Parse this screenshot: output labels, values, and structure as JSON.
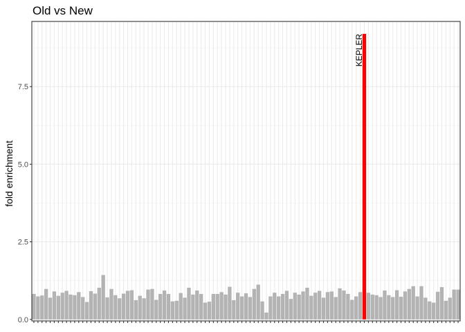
{
  "chart_data": {
    "type": "bar",
    "title": "Old vs New",
    "xlabel": "",
    "ylabel": "fold enrichment",
    "ylim": [
      -0.05,
      9.6
    ],
    "yticks": [
      0.0,
      2.5,
      5.0,
      7.5
    ],
    "ytick_labels": [
      "0.0",
      "2.5",
      "5.0",
      "7.5"
    ],
    "grid": true,
    "bar_color": "#b3b3b3",
    "highlight_color": "#ff0000",
    "highlight_index": 81,
    "annotation": {
      "text": "KEPLER",
      "category_index": 81
    },
    "values": [
      0.82,
      0.74,
      0.77,
      0.98,
      0.7,
      0.9,
      0.76,
      0.86,
      0.92,
      0.8,
      0.78,
      0.88,
      0.72,
      0.56,
      0.91,
      0.83,
      1.02,
      1.43,
      0.71,
      0.98,
      0.78,
      0.68,
      0.83,
      0.92,
      0.94,
      0.62,
      0.76,
      0.68,
      0.96,
      0.98,
      0.63,
      0.82,
      0.93,
      0.82,
      0.58,
      0.6,
      0.85,
      0.7,
      1.02,
      0.8,
      0.93,
      0.82,
      0.54,
      0.57,
      0.82,
      0.82,
      0.88,
      0.8,
      1.05,
      0.62,
      0.86,
      0.74,
      0.84,
      0.72,
      0.98,
      1.12,
      0.58,
      0.22,
      0.74,
      0.86,
      0.74,
      0.82,
      0.92,
      0.66,
      0.86,
      0.8,
      0.9,
      1.02,
      0.76,
      0.86,
      0.92,
      0.7,
      0.88,
      0.9,
      0.72,
      1.0,
      0.93,
      0.82,
      0.63,
      0.74,
      0.88,
      9.2,
      0.86,
      0.8,
      0.78,
      0.72,
      0.93,
      0.78,
      0.72,
      0.94,
      0.73,
      0.9,
      0.98,
      1.07,
      0.74,
      1.07,
      0.7,
      0.58,
      0.54,
      0.89,
      1.04,
      0.6,
      0.7,
      0.96,
      0.96
    ]
  }
}
